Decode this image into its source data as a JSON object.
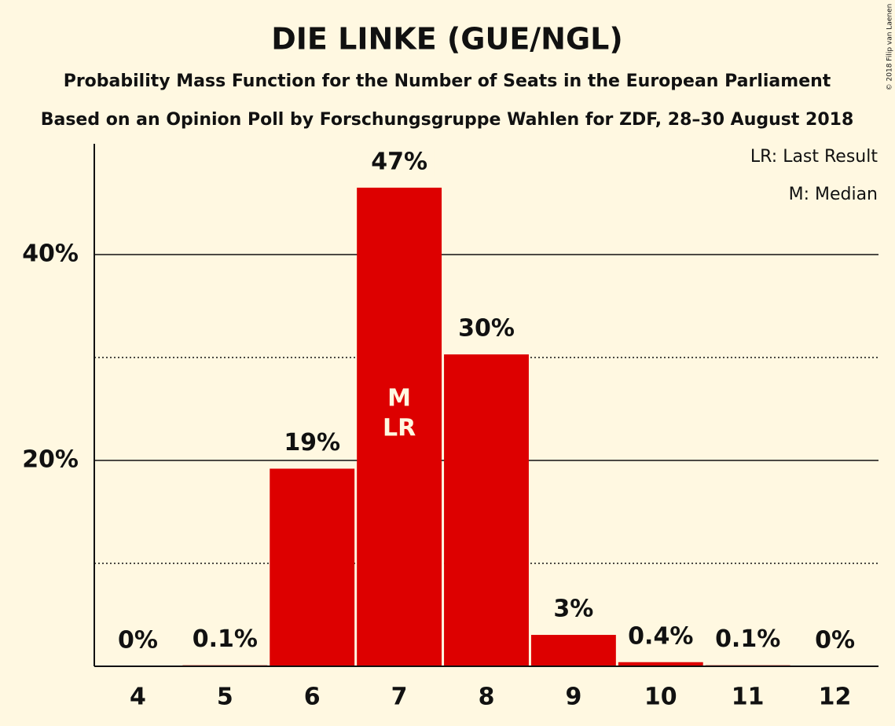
{
  "chart_data": {
    "type": "bar",
    "title": "DIE LINKE (GUE/NGL)",
    "subtitle": "Probability Mass Function for the Number of Seats in the European Parliament",
    "subtitle2": "Based on an Opinion Poll by Forschungsgruppe Wahlen for ZDF, 28–30 August 2018",
    "credit": "© 2018 Filip van Laenen",
    "notes": [
      "LR: Last Result",
      "M: Median"
    ],
    "categories": [
      "4",
      "5",
      "6",
      "7",
      "8",
      "9",
      "10",
      "11",
      "12"
    ],
    "values": [
      0,
      0.1,
      19.2,
      46.5,
      30.3,
      3.05,
      0.4,
      0.1,
      0
    ],
    "value_labels": [
      "0%",
      "0.1%",
      "19%",
      "47%",
      "30%",
      "3%",
      "0.4%",
      "0.1%",
      "0%"
    ],
    "annotations": [
      {
        "category": "7",
        "lines": [
          "M",
          "LR"
        ]
      }
    ],
    "color": "#dd0000",
    "ylim": [
      0,
      50
    ],
    "yticks": [
      {
        "value": 20,
        "label": "20%"
      },
      {
        "value": 40,
        "label": "40%"
      }
    ],
    "minor_yticks": [
      10,
      30
    ],
    "grid": true
  }
}
